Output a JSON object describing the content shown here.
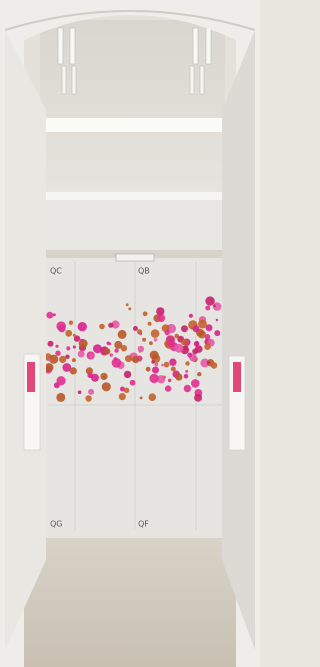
{
  "labels": {
    "top_left": "QC",
    "top_right": "QB",
    "bottom_left": "QG",
    "bottom_right": "QF"
  }
}
